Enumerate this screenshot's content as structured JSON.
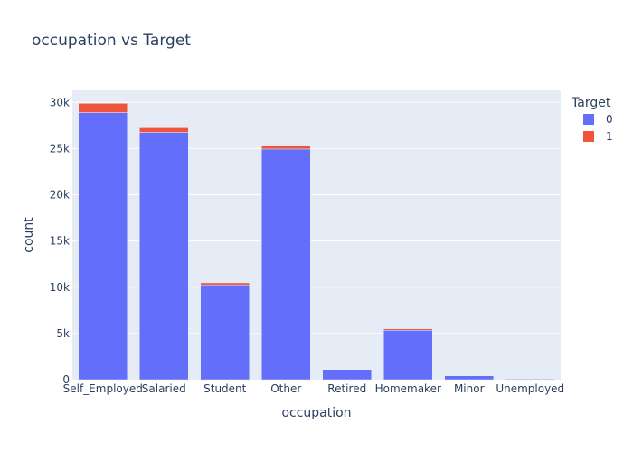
{
  "chart_data": {
    "type": "bar",
    "stacked": true,
    "title": "occupation vs Target",
    "xlabel": "occupation",
    "ylabel": "count",
    "ylim": [
      0,
      31300
    ],
    "yticks": [
      0,
      5000,
      10000,
      15000,
      20000,
      25000,
      30000
    ],
    "ytick_labels": [
      "0",
      "5k",
      "10k",
      "15k",
      "20k",
      "25k",
      "30k"
    ],
    "categories": [
      "Self_Employed",
      "Salaried",
      "Student",
      "Other",
      "Retired",
      "Homemaker",
      "Minor",
      "Unemployed"
    ],
    "legend_title": "Target",
    "legend_position": "top-right",
    "grid": true,
    "series": [
      {
        "name": "0",
        "color": "#636efa",
        "values": [
          28900,
          26750,
          10250,
          24950,
          1100,
          5350,
          420,
          80
        ]
      },
      {
        "name": "1",
        "color": "#ef553b",
        "values": [
          1000,
          500,
          220,
          400,
          20,
          150,
          10,
          5
        ]
      }
    ]
  }
}
